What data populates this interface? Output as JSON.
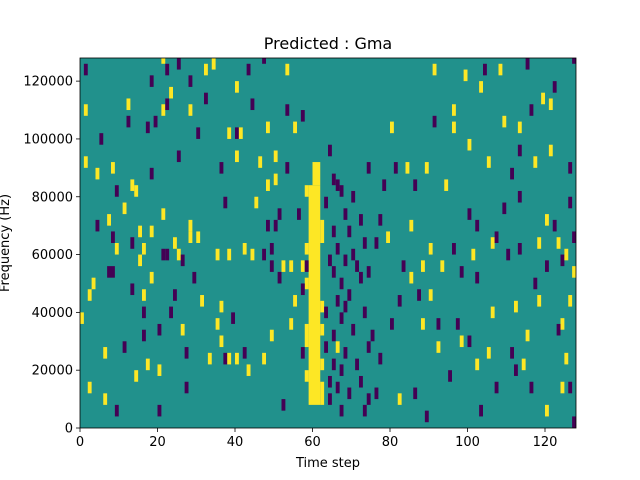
{
  "chart_data": {
    "type": "heatmap",
    "title": "Predicted : Gma",
    "xlabel": "Time step",
    "ylabel": "Frequency (Hz)",
    "xlim": [
      0,
      128
    ],
    "ylim": [
      0,
      128000
    ],
    "xticks": [
      0,
      20,
      40,
      60,
      80,
      100,
      120
    ],
    "yticks": [
      0,
      20000,
      40000,
      60000,
      80000,
      100000,
      120000
    ],
    "grid": false,
    "legend": "none",
    "values_meaning": "three-level mask: -1 = dark (low), 0 = background, 1 = bright (high)",
    "colors": {
      "-1": "#440154",
      "0": "#21918c",
      "1": "#fde725"
    },
    "cell_height_hz": 4000,
    "yellow_band": [
      {
        "x0": 59,
        "x1": 62,
        "y0": 8000,
        "y1": 84000
      },
      {
        "x0": 60,
        "x1": 62,
        "y0": 84000,
        "y1": 92000
      },
      {
        "x0": 58,
        "x1": 59,
        "y0": 60000,
        "y1": 64000
      },
      {
        "x0": 58,
        "x1": 59,
        "y0": 48000,
        "y1": 52000
      },
      {
        "x0": 58,
        "x1": 59,
        "y0": 28000,
        "y1": 36000
      },
      {
        "x0": 58,
        "x1": 59,
        "y0": 16000,
        "y1": 20000
      },
      {
        "x0": 62,
        "x1": 63,
        "y0": 64000,
        "y1": 72000
      },
      {
        "x0": 62,
        "x1": 63,
        "y0": 40000,
        "y1": 44000
      },
      {
        "x0": 62,
        "x1": 63,
        "y0": 32000,
        "y1": 36000
      },
      {
        "x0": 62,
        "x1": 63,
        "y0": 20000,
        "y1": 24000
      },
      {
        "x0": 62,
        "x1": 63,
        "y0": 8000,
        "y1": 16000
      }
    ],
    "cells": [
      [
        0,
        38000,
        1
      ],
      [
        1,
        92000,
        1
      ],
      [
        1,
        124000,
        -1
      ],
      [
        1,
        110000,
        1
      ],
      [
        2,
        14000,
        1
      ],
      [
        2,
        46000,
        1
      ],
      [
        3,
        50000,
        1
      ],
      [
        4,
        88000,
        1
      ],
      [
        4,
        70000,
        -1
      ],
      [
        5,
        100000,
        -1
      ],
      [
        6,
        26000,
        1
      ],
      [
        6,
        10000,
        1
      ],
      [
        7,
        54000,
        -1
      ],
      [
        7,
        72000,
        1
      ],
      [
        8,
        54000,
        -1
      ],
      [
        8,
        66000,
        -1
      ],
      [
        8,
        90000,
        1
      ],
      [
        9,
        6000,
        -1
      ],
      [
        9,
        82000,
        -1
      ],
      [
        9,
        62000,
        1
      ],
      [
        11,
        28000,
        -1
      ],
      [
        11,
        76000,
        1
      ],
      [
        12,
        106000,
        -1
      ],
      [
        12,
        112000,
        1
      ],
      [
        13,
        64000,
        -1
      ],
      [
        13,
        84000,
        1
      ],
      [
        13,
        48000,
        -1
      ],
      [
        14,
        18000,
        1
      ],
      [
        14,
        82000,
        1
      ],
      [
        15,
        58000,
        1
      ],
      [
        15,
        68000,
        1
      ],
      [
        16,
        32000,
        -1
      ],
      [
        16,
        62000,
        1
      ],
      [
        16,
        40000,
        -1
      ],
      [
        16,
        46000,
        1
      ],
      [
        17,
        104000,
        -1
      ],
      [
        17,
        22000,
        1
      ],
      [
        18,
        88000,
        -1
      ],
      [
        18,
        52000,
        1
      ],
      [
        18,
        68000,
        1
      ],
      [
        18,
        120000,
        -1
      ],
      [
        19,
        106000,
        -1
      ],
      [
        20,
        20000,
        1
      ],
      [
        20,
        6000,
        -1
      ],
      [
        20,
        34000,
        -1
      ],
      [
        21,
        128000,
        1
      ],
      [
        21,
        60000,
        -1
      ],
      [
        21,
        110000,
        1
      ],
      [
        21,
        74000,
        1
      ],
      [
        22,
        112000,
        -1
      ],
      [
        22,
        60000,
        -1
      ],
      [
        22,
        124000,
        -1
      ],
      [
        23,
        116000,
        1
      ],
      [
        23,
        40000,
        -1
      ],
      [
        24,
        46000,
        -1
      ],
      [
        24,
        64000,
        1
      ],
      [
        25,
        94000,
        -1
      ],
      [
        25,
        60000,
        1
      ],
      [
        25,
        126000,
        -1
      ],
      [
        26,
        58000,
        -1
      ],
      [
        26,
        34000,
        1
      ],
      [
        27,
        26000,
        -1
      ],
      [
        27,
        14000,
        -1
      ],
      [
        28,
        110000,
        1
      ],
      [
        28,
        66000,
        1
      ],
      [
        28,
        120000,
        -1
      ],
      [
        28,
        70000,
        1
      ],
      [
        29,
        52000,
        -1
      ],
      [
        30,
        102000,
        -1
      ],
      [
        30,
        66000,
        1
      ],
      [
        31,
        44000,
        1
      ],
      [
        32,
        114000,
        -1
      ],
      [
        32,
        124000,
        1
      ],
      [
        33,
        24000,
        1
      ],
      [
        34,
        126000,
        1
      ],
      [
        35,
        60000,
        1
      ],
      [
        35,
        36000,
        1
      ],
      [
        36,
        90000,
        -1
      ],
      [
        36,
        42000,
        1
      ],
      [
        36,
        30000,
        1
      ],
      [
        37,
        78000,
        -1
      ],
      [
        37,
        24000,
        -1
      ],
      [
        38,
        24000,
        1
      ],
      [
        38,
        60000,
        1
      ],
      [
        38,
        102000,
        1
      ],
      [
        39,
        38000,
        -1
      ],
      [
        40,
        24000,
        1
      ],
      [
        40,
        102000,
        -1
      ],
      [
        40,
        118000,
        1
      ],
      [
        40,
        94000,
        1
      ],
      [
        41,
        102000,
        1
      ],
      [
        42,
        26000,
        -1
      ],
      [
        42,
        62000,
        1
      ],
      [
        43,
        20000,
        1
      ],
      [
        43,
        124000,
        -1
      ],
      [
        44,
        112000,
        -1
      ],
      [
        44,
        60000,
        1
      ],
      [
        45,
        78000,
        1
      ],
      [
        46,
        92000,
        1
      ],
      [
        47,
        60000,
        -1
      ],
      [
        47,
        24000,
        1
      ],
      [
        47,
        128000,
        -1
      ],
      [
        48,
        84000,
        1
      ],
      [
        48,
        104000,
        1
      ],
      [
        48,
        70000,
        -1
      ],
      [
        49,
        32000,
        1
      ],
      [
        49,
        56000,
        -1
      ],
      [
        49,
        62000,
        -1
      ],
      [
        50,
        94000,
        1
      ],
      [
        50,
        70000,
        -1
      ],
      [
        50,
        86000,
        1
      ],
      [
        51,
        74000,
        -1
      ],
      [
        51,
        52000,
        -1
      ],
      [
        52,
        56000,
        1
      ],
      [
        52,
        8000,
        -1
      ],
      [
        53,
        90000,
        -1
      ],
      [
        53,
        124000,
        1
      ],
      [
        53,
        110000,
        -1
      ],
      [
        54,
        56000,
        1
      ],
      [
        54,
        36000,
        1
      ],
      [
        55,
        104000,
        1
      ],
      [
        55,
        44000,
        1
      ],
      [
        56,
        74000,
        -1
      ],
      [
        57,
        56000,
        1
      ],
      [
        57,
        26000,
        -1
      ],
      [
        57,
        108000,
        -1
      ],
      [
        57,
        48000,
        -1
      ],
      [
        58,
        82000,
        1
      ],
      [
        58,
        56000,
        -1
      ],
      [
        63,
        78000,
        -1
      ],
      [
        63,
        40000,
        -1
      ],
      [
        63,
        28000,
        -1
      ],
      [
        64,
        96000,
        -1
      ],
      [
        64,
        58000,
        -1
      ],
      [
        64,
        16000,
        -1
      ],
      [
        64,
        10000,
        -1
      ],
      [
        65,
        86000,
        -1
      ],
      [
        65,
        68000,
        -1
      ],
      [
        65,
        54000,
        -1
      ],
      [
        65,
        32000,
        -1
      ],
      [
        65,
        22000,
        -1
      ],
      [
        66,
        84000,
        -1
      ],
      [
        66,
        62000,
        -1
      ],
      [
        66,
        44000,
        -1
      ],
      [
        66,
        28000,
        1
      ],
      [
        66,
        14000,
        -1
      ],
      [
        67,
        82000,
        -1
      ],
      [
        67,
        50000,
        -1
      ],
      [
        67,
        38000,
        -1
      ],
      [
        67,
        20000,
        -1
      ],
      [
        67,
        6000,
        -1
      ],
      [
        68,
        74000,
        -1
      ],
      [
        68,
        58000,
        -1
      ],
      [
        68,
        42000,
        -1
      ],
      [
        68,
        26000,
        -1
      ],
      [
        69,
        68000,
        -1
      ],
      [
        69,
        46000,
        -1
      ],
      [
        69,
        12000,
        -1
      ],
      [
        70,
        80000,
        -1
      ],
      [
        70,
        60000,
        -1
      ],
      [
        70,
        34000,
        -1
      ],
      [
        71,
        56000,
        -1
      ],
      [
        71,
        22000,
        -1
      ],
      [
        72,
        72000,
        -1
      ],
      [
        72,
        52000,
        -1
      ],
      [
        72,
        16000,
        -1
      ],
      [
        73,
        64000,
        -1
      ],
      [
        73,
        40000,
        -1
      ],
      [
        73,
        6000,
        -1
      ],
      [
        74,
        90000,
        -1
      ],
      [
        74,
        54000,
        -1
      ],
      [
        74,
        28000,
        -1
      ],
      [
        74,
        10000,
        -1
      ],
      [
        75,
        32000,
        -1
      ],
      [
        76,
        64000,
        -1
      ],
      [
        76,
        12000,
        -1
      ],
      [
        77,
        72000,
        -1
      ],
      [
        77,
        24000,
        -1
      ],
      [
        78,
        84000,
        -1
      ],
      [
        79,
        66000,
        1
      ],
      [
        80,
        104000,
        1
      ],
      [
        80,
        36000,
        -1
      ],
      [
        81,
        90000,
        -1
      ],
      [
        82,
        44000,
        -1
      ],
      [
        82,
        10000,
        1
      ],
      [
        83,
        56000,
        -1
      ],
      [
        84,
        90000,
        1
      ],
      [
        85,
        70000,
        1
      ],
      [
        85,
        52000,
        1
      ],
      [
        86,
        84000,
        -1
      ],
      [
        86,
        12000,
        -1
      ],
      [
        87,
        46000,
        -1
      ],
      [
        88,
        36000,
        1
      ],
      [
        88,
        56000,
        1
      ],
      [
        89,
        90000,
        1
      ],
      [
        89,
        4000,
        -1
      ],
      [
        90,
        62000,
        1
      ],
      [
        90,
        46000,
        1
      ],
      [
        91,
        106000,
        -1
      ],
      [
        91,
        124000,
        1
      ],
      [
        92,
        36000,
        -1
      ],
      [
        92,
        28000,
        1
      ],
      [
        93,
        56000,
        1
      ],
      [
        94,
        84000,
        1
      ],
      [
        95,
        18000,
        -1
      ],
      [
        96,
        110000,
        1
      ],
      [
        96,
        62000,
        -1
      ],
      [
        96,
        104000,
        1
      ],
      [
        97,
        36000,
        -1
      ],
      [
        98,
        30000,
        1
      ],
      [
        98,
        54000,
        -1
      ],
      [
        99,
        122000,
        1
      ],
      [
        100,
        30000,
        -1
      ],
      [
        100,
        74000,
        -1
      ],
      [
        100,
        98000,
        1
      ],
      [
        101,
        60000,
        1
      ],
      [
        102,
        52000,
        -1
      ],
      [
        102,
        22000,
        1
      ],
      [
        102,
        70000,
        -1
      ],
      [
        103,
        118000,
        1
      ],
      [
        103,
        6000,
        -1
      ],
      [
        104,
        124000,
        -1
      ],
      [
        105,
        92000,
        1
      ],
      [
        105,
        26000,
        1
      ],
      [
        106,
        40000,
        1
      ],
      [
        106,
        64000,
        1
      ],
      [
        107,
        14000,
        -1
      ],
      [
        107,
        66000,
        -1
      ],
      [
        108,
        124000,
        1
      ],
      [
        109,
        76000,
        -1
      ],
      [
        109,
        106000,
        1
      ],
      [
        110,
        60000,
        -1
      ],
      [
        111,
        88000,
        -1
      ],
      [
        111,
        26000,
        -1
      ],
      [
        112,
        20000,
        -1
      ],
      [
        112,
        42000,
        1
      ],
      [
        113,
        96000,
        -1
      ],
      [
        113,
        80000,
        -1
      ],
      [
        113,
        104000,
        1
      ],
      [
        113,
        62000,
        -1
      ],
      [
        114,
        22000,
        1
      ],
      [
        115,
        32000,
        1
      ],
      [
        115,
        126000,
        -1
      ],
      [
        116,
        14000,
        -1
      ],
      [
        116,
        110000,
        -1
      ],
      [
        117,
        92000,
        1
      ],
      [
        117,
        50000,
        -1
      ],
      [
        118,
        64000,
        1
      ],
      [
        118,
        44000,
        1
      ],
      [
        119,
        114000,
        1
      ],
      [
        120,
        72000,
        1
      ],
      [
        120,
        56000,
        -1
      ],
      [
        120,
        6000,
        1
      ],
      [
        121,
        96000,
        1
      ],
      [
        121,
        112000,
        1
      ],
      [
        122,
        118000,
        -1
      ],
      [
        122,
        70000,
        -1
      ],
      [
        123,
        34000,
        -1
      ],
      [
        123,
        64000,
        1
      ],
      [
        124,
        58000,
        -1
      ],
      [
        124,
        36000,
        1
      ],
      [
        124,
        14000,
        1
      ],
      [
        125,
        24000,
        1
      ],
      [
        125,
        60000,
        1
      ],
      [
        126,
        78000,
        -1
      ],
      [
        126,
        14000,
        -1
      ],
      [
        127,
        66000,
        -1
      ],
      [
        127,
        54000,
        1
      ],
      [
        127,
        2000,
        -1
      ],
      [
        127,
        128000,
        -1
      ],
      [
        126,
        44000,
        1
      ],
      [
        126,
        90000,
        -1
      ]
    ]
  }
}
